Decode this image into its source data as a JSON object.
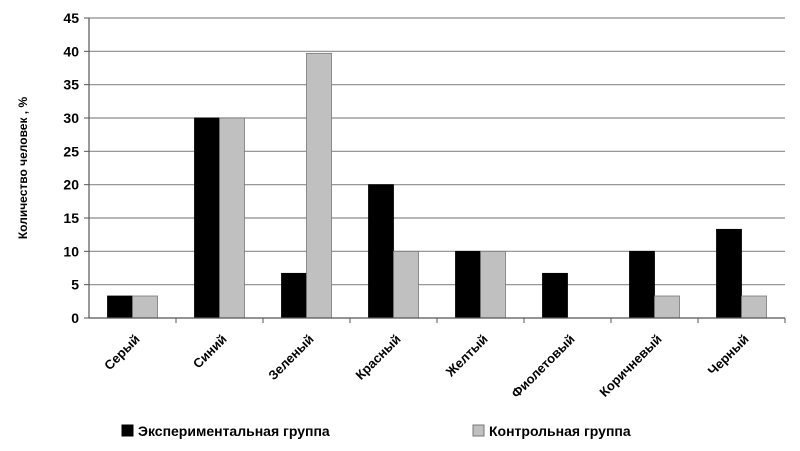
{
  "chart_data": {
    "type": "bar",
    "title": "",
    "xlabel": "",
    "ylabel": "Количество человек , %",
    "ylim": [
      0,
      45
    ],
    "yticks": [
      0,
      5,
      10,
      15,
      20,
      25,
      30,
      35,
      40,
      45
    ],
    "grid": true,
    "legend_position": "bottom",
    "categories": [
      "Серый",
      "Синий",
      "Зеленый",
      "Красный",
      "Желтый",
      "Фиолетовый",
      "Коричневый",
      "Черный"
    ],
    "series": [
      {
        "name": "Экспериментальная группа",
        "color": "#000000",
        "values": [
          3.3,
          30,
          6.7,
          20,
          10,
          6.7,
          10,
          13.3
        ]
      },
      {
        "name": "Контрольная группа",
        "color": "#c0c0c0",
        "values": [
          3.3,
          30,
          39.7,
          10,
          10,
          0,
          3.3,
          3.3
        ]
      }
    ]
  }
}
